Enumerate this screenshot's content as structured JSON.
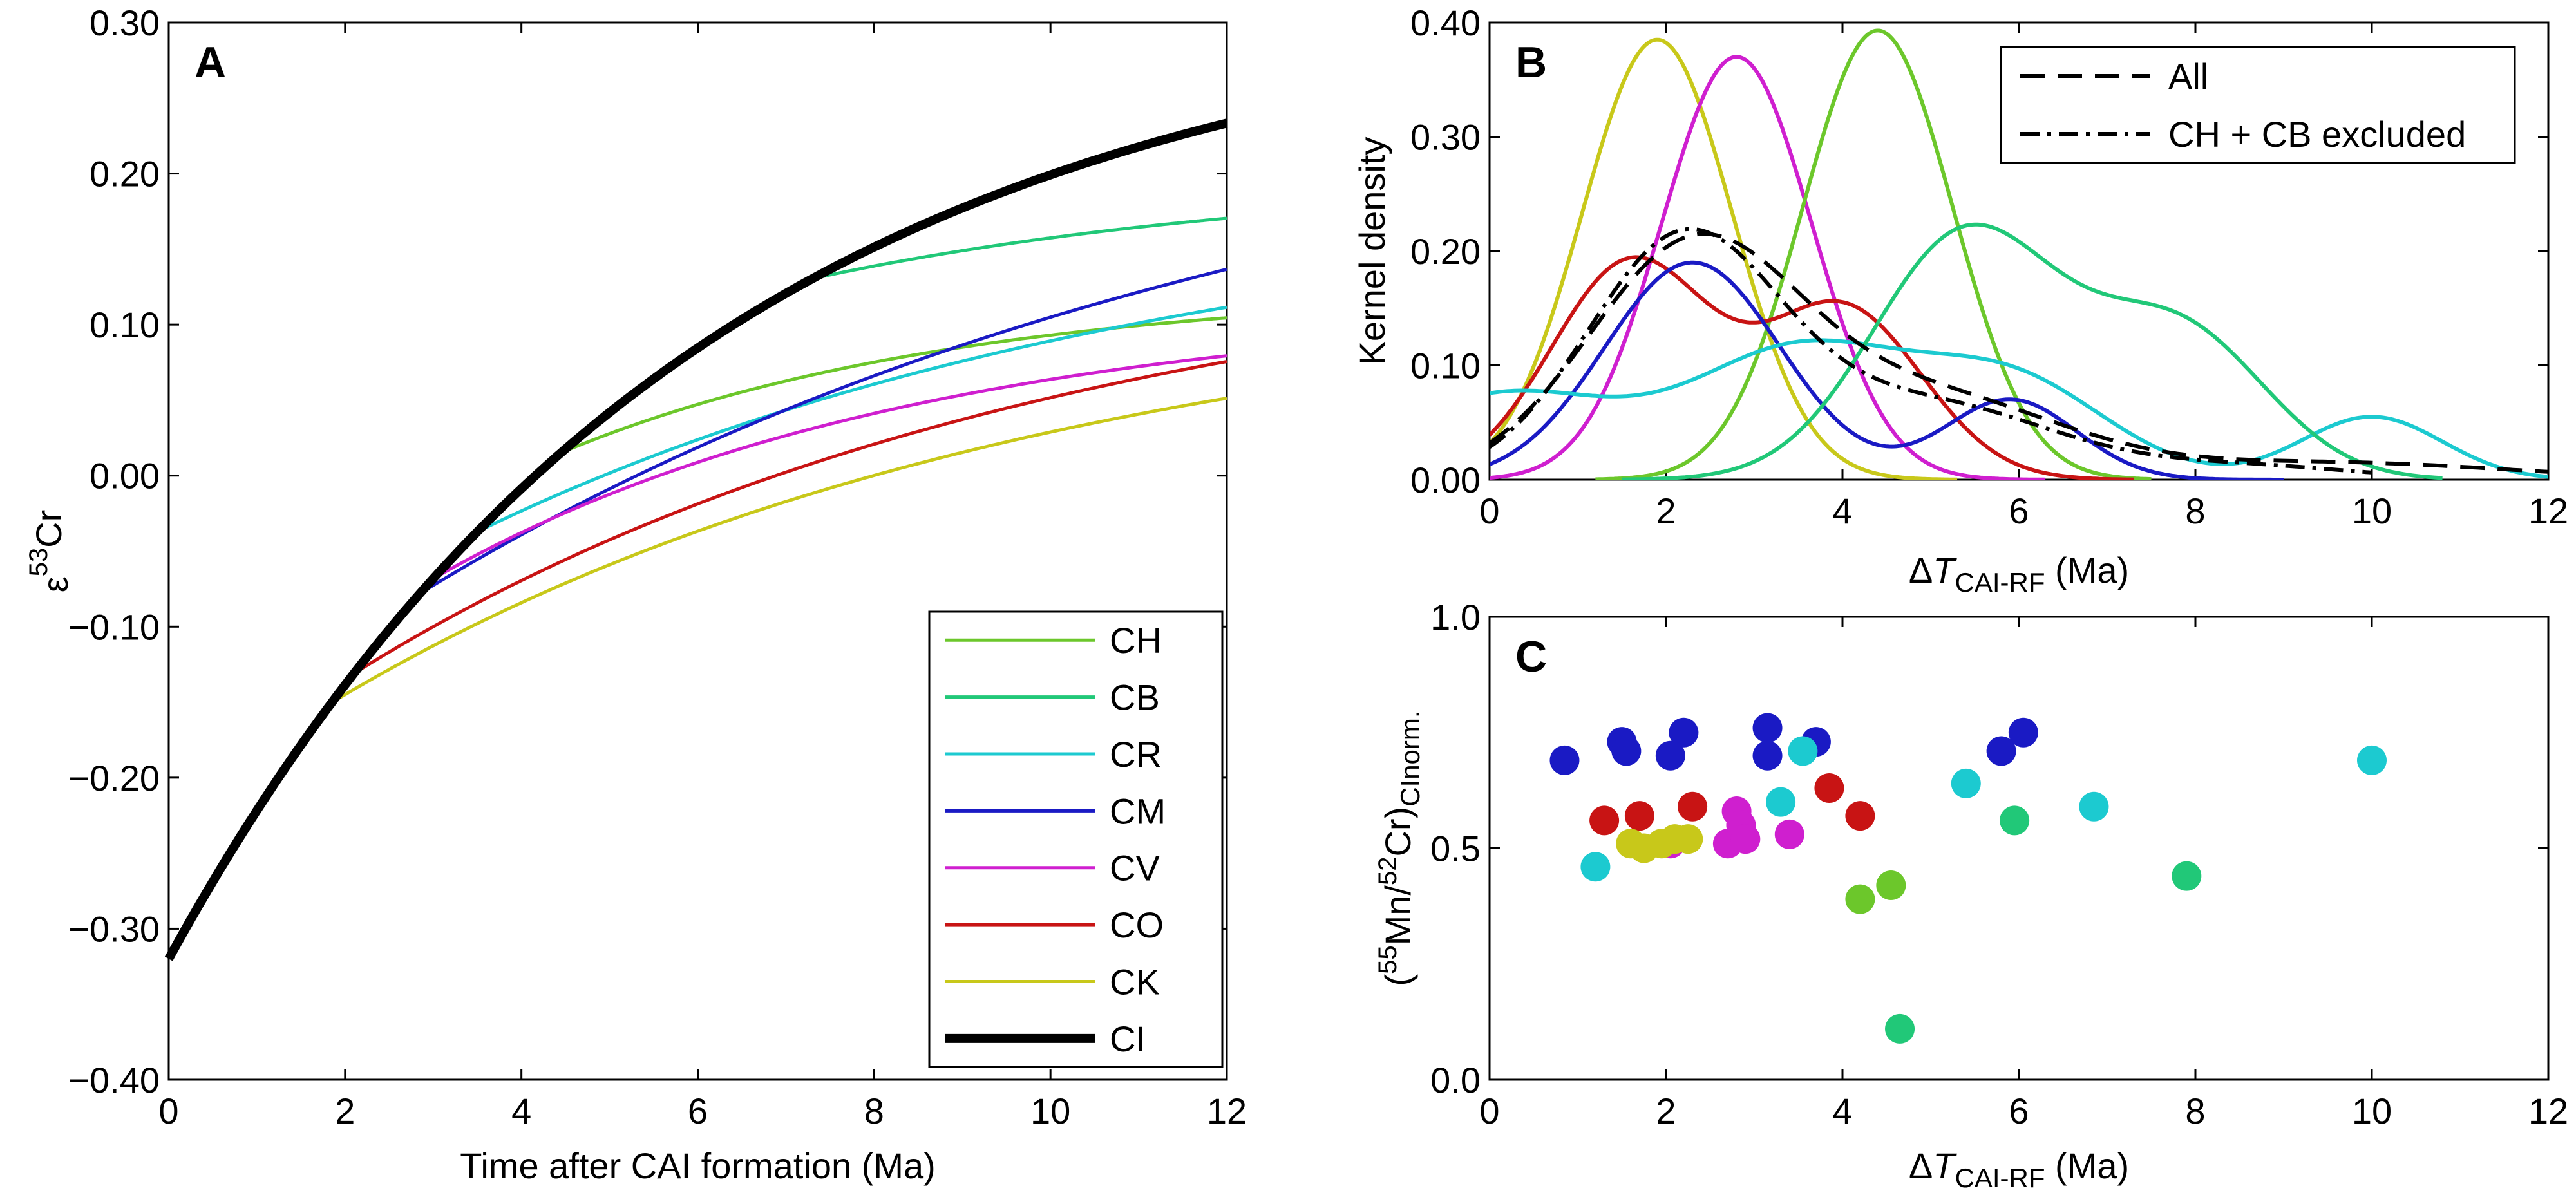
{
  "chart_data": [
    {
      "panel": "A",
      "type": "line",
      "xlabel": "Time after CAI formation (Ma)",
      "ylabel": {
        "base": "ε",
        "sup": "53",
        "tail": "Cr"
      },
      "xlim": [
        0,
        12
      ],
      "ylim": [
        -0.4,
        0.3
      ],
      "xticks": [
        0,
        2,
        4,
        6,
        8,
        10,
        12
      ],
      "yticks": [
        -0.4,
        -0.3,
        -0.2,
        -0.1,
        0.0,
        0.1,
        0.2,
        0.3
      ],
      "ytick_labels": [
        "−0.40",
        "−0.30",
        "−0.20",
        "−0.10",
        "0.00",
        "0.10",
        "0.20",
        "0.30"
      ],
      "legend_position": "lower-right",
      "series": [
        {
          "name": "CH",
          "color": "#6cc72b",
          "t0": 4.45,
          "asymptote": 0.125,
          "tau": 4.5,
          "width": 5
        },
        {
          "name": "CB",
          "color": "#21c878",
          "t0": 7.3,
          "asymptote": 0.2,
          "tau": 5.5,
          "width": 5
        },
        {
          "name": "CR",
          "color": "#1ccad0",
          "t0": 3.5,
          "asymptote": 0.19,
          "tau": 8.0,
          "width": 5
        },
        {
          "name": "CM",
          "color": "#1a1ac4",
          "t0": 2.85,
          "asymptote": 0.28,
          "tau": 10.0,
          "width": 5
        },
        {
          "name": "CV",
          "color": "#cf1fcf",
          "t0": 3.0,
          "asymptote": 0.115,
          "tau": 5.5,
          "width": 5
        },
        {
          "name": "CO",
          "color": "#c81414",
          "t0": 2.1,
          "asymptote": 0.16,
          "tau": 8.0,
          "width": 5
        },
        {
          "name": "CK",
          "color": "#c8c81a",
          "t0": 1.85,
          "asymptote": 0.13,
          "tau": 8.0,
          "width": 5
        },
        {
          "name": "CI",
          "color": "#000000",
          "y0": -0.32,
          "asymptote": 0.32,
          "tau": 6.0,
          "width": 14
        }
      ]
    },
    {
      "panel": "B",
      "type": "line",
      "xlabel": {
        "base": "ΔT",
        "sub": "CAI-RF",
        "tail": " (Ma)"
      },
      "ylabel": "Kernel density",
      "xlim": [
        0,
        12
      ],
      "ylim": [
        0,
        0.4
      ],
      "xticks": [
        0,
        2,
        4,
        6,
        8,
        10,
        12
      ],
      "yticks": [
        0,
        0.1,
        0.2,
        0.3,
        0.4
      ],
      "ytick_labels": [
        "0.00",
        "0.10",
        "0.20",
        "0.30",
        "0.40"
      ],
      "legend_position": "top-right",
      "series": [
        {
          "name": "",
          "group": "CK",
          "color": "#c8c81a",
          "range": [
            0,
            5.3
          ],
          "components": [
            {
              "mu": 1.9,
              "sigma": 0.85,
              "amp": 0.385
            }
          ]
        },
        {
          "name": "",
          "group": "CV",
          "color": "#cf1fcf",
          "range": [
            0,
            6.3
          ],
          "components": [
            {
              "mu": 2.8,
              "sigma": 0.85,
              "amp": 0.37
            }
          ]
        },
        {
          "name": "",
          "group": "CH",
          "color": "#6cc72b",
          "range": [
            1.2,
            7.5
          ],
          "components": [
            {
              "mu": 4.4,
              "sigma": 0.85,
              "amp": 0.393
            }
          ]
        },
        {
          "name": "",
          "group": "CO",
          "color": "#c81414",
          "range": [
            0,
            7.3
          ],
          "components": [
            {
              "mu": 1.6,
              "sigma": 0.9,
              "amp": 0.19
            },
            {
              "mu": 4.0,
              "sigma": 0.9,
              "amp": 0.15
            }
          ]
        },
        {
          "name": "",
          "group": "CM",
          "color": "#1a1ac4",
          "range": [
            0,
            9.0
          ],
          "components": [
            {
              "mu": 2.3,
              "sigma": 1.0,
              "amp": 0.19
            },
            {
              "mu": 5.9,
              "sigma": 0.75,
              "amp": 0.07
            }
          ]
        },
        {
          "name": "",
          "group": "CR",
          "color": "#1ccad0",
          "range": [
            0,
            12
          ],
          "components": [
            {
              "mu": 0.2,
              "sigma": 1.3,
              "amp": 0.075
            },
            {
              "mu": 3.5,
              "sigma": 1.2,
              "amp": 0.11
            },
            {
              "mu": 5.9,
              "sigma": 1.1,
              "amp": 0.085
            },
            {
              "mu": 10.0,
              "sigma": 0.8,
              "amp": 0.055
            }
          ]
        },
        {
          "name": "",
          "group": "CB",
          "color": "#21c878",
          "range": [
            1.5,
            10.8
          ],
          "components": [
            {
              "mu": 5.4,
              "sigma": 1.05,
              "amp": 0.215
            },
            {
              "mu": 7.8,
              "sigma": 1.0,
              "amp": 0.13
            }
          ]
        },
        {
          "name": "All",
          "color": "#000000",
          "dash": "38 20",
          "range": [
            0,
            12
          ],
          "components": [
            {
              "mu": 2.3,
              "sigma": 1.2,
              "amp": 0.2
            },
            {
              "mu": 5.0,
              "sigma": 1.5,
              "amp": 0.07
            },
            {
              "mu": 9.5,
              "sigma": 2.0,
              "amp": 0.015
            }
          ]
        },
        {
          "name": "CH + CB excluded",
          "color": "#000000",
          "dash": "30 12 6 12",
          "range": [
            0,
            10
          ],
          "components": [
            {
              "mu": 2.2,
              "sigma": 1.1,
              "amp": 0.21
            },
            {
              "mu": 5.0,
              "sigma": 1.4,
              "amp": 0.065
            },
            {
              "mu": 8.5,
              "sigma": 1.3,
              "amp": 0.012
            }
          ]
        }
      ]
    },
    {
      "panel": "C",
      "type": "scatter",
      "xlabel": {
        "base": "ΔT",
        "sub": "CAI-RF",
        "tail": " (Ma)"
      },
      "ylabel": {
        "parts": [
          "(",
          "55",
          "Mn/",
          "52",
          "Cr)",
          "CInorm."
        ]
      },
      "xlim": [
        0,
        12
      ],
      "ylim": [
        0,
        1
      ],
      "xticks": [
        0,
        2,
        4,
        6,
        8,
        10,
        12
      ],
      "yticks": [
        0,
        0.5,
        1
      ],
      "ytick_labels": [
        "0.0",
        "0.5",
        "1.0"
      ],
      "groups": [
        {
          "name": "CM",
          "color": "#1a1ac4",
          "points": [
            [
              0.85,
              0.69
            ],
            [
              1.5,
              0.73
            ],
            [
              1.55,
              0.71
            ],
            [
              2.05,
              0.7
            ],
            [
              2.2,
              0.75
            ],
            [
              3.15,
              0.76
            ],
            [
              3.15,
              0.7
            ],
            [
              3.7,
              0.73
            ],
            [
              5.8,
              0.71
            ],
            [
              6.05,
              0.75
            ]
          ]
        },
        {
          "name": "CR",
          "color": "#1ccad0",
          "points": [
            [
              1.2,
              0.46
            ],
            [
              3.3,
              0.6
            ],
            [
              3.55,
              0.71
            ],
            [
              5.4,
              0.64
            ],
            [
              6.85,
              0.59
            ],
            [
              10.0,
              0.69
            ]
          ]
        },
        {
          "name": "CO",
          "color": "#c81414",
          "points": [
            [
              1.3,
              0.56
            ],
            [
              1.7,
              0.57
            ],
            [
              2.3,
              0.59
            ],
            [
              3.85,
              0.63
            ],
            [
              4.2,
              0.57
            ]
          ]
        },
        {
          "name": "CV",
          "color": "#cf1fcf",
          "points": [
            [
              2.05,
              0.51
            ],
            [
              2.7,
              0.51
            ],
            [
              2.8,
              0.58
            ],
            [
              2.85,
              0.55
            ],
            [
              2.9,
              0.52
            ],
            [
              3.4,
              0.53
            ]
          ]
        },
        {
          "name": "CK",
          "color": "#c8c81a",
          "points": [
            [
              1.6,
              0.51
            ],
            [
              1.75,
              0.5
            ],
            [
              1.95,
              0.51
            ],
            [
              2.1,
              0.52
            ],
            [
              2.25,
              0.52
            ]
          ]
        },
        {
          "name": "CH",
          "color": "#6cc72b",
          "points": [
            [
              4.2,
              0.39
            ],
            [
              4.55,
              0.42
            ]
          ]
        },
        {
          "name": "CB",
          "color": "#21c878",
          "points": [
            [
              4.65,
              0.11
            ],
            [
              5.95,
              0.56
            ],
            [
              7.9,
              0.44
            ]
          ]
        }
      ]
    }
  ]
}
